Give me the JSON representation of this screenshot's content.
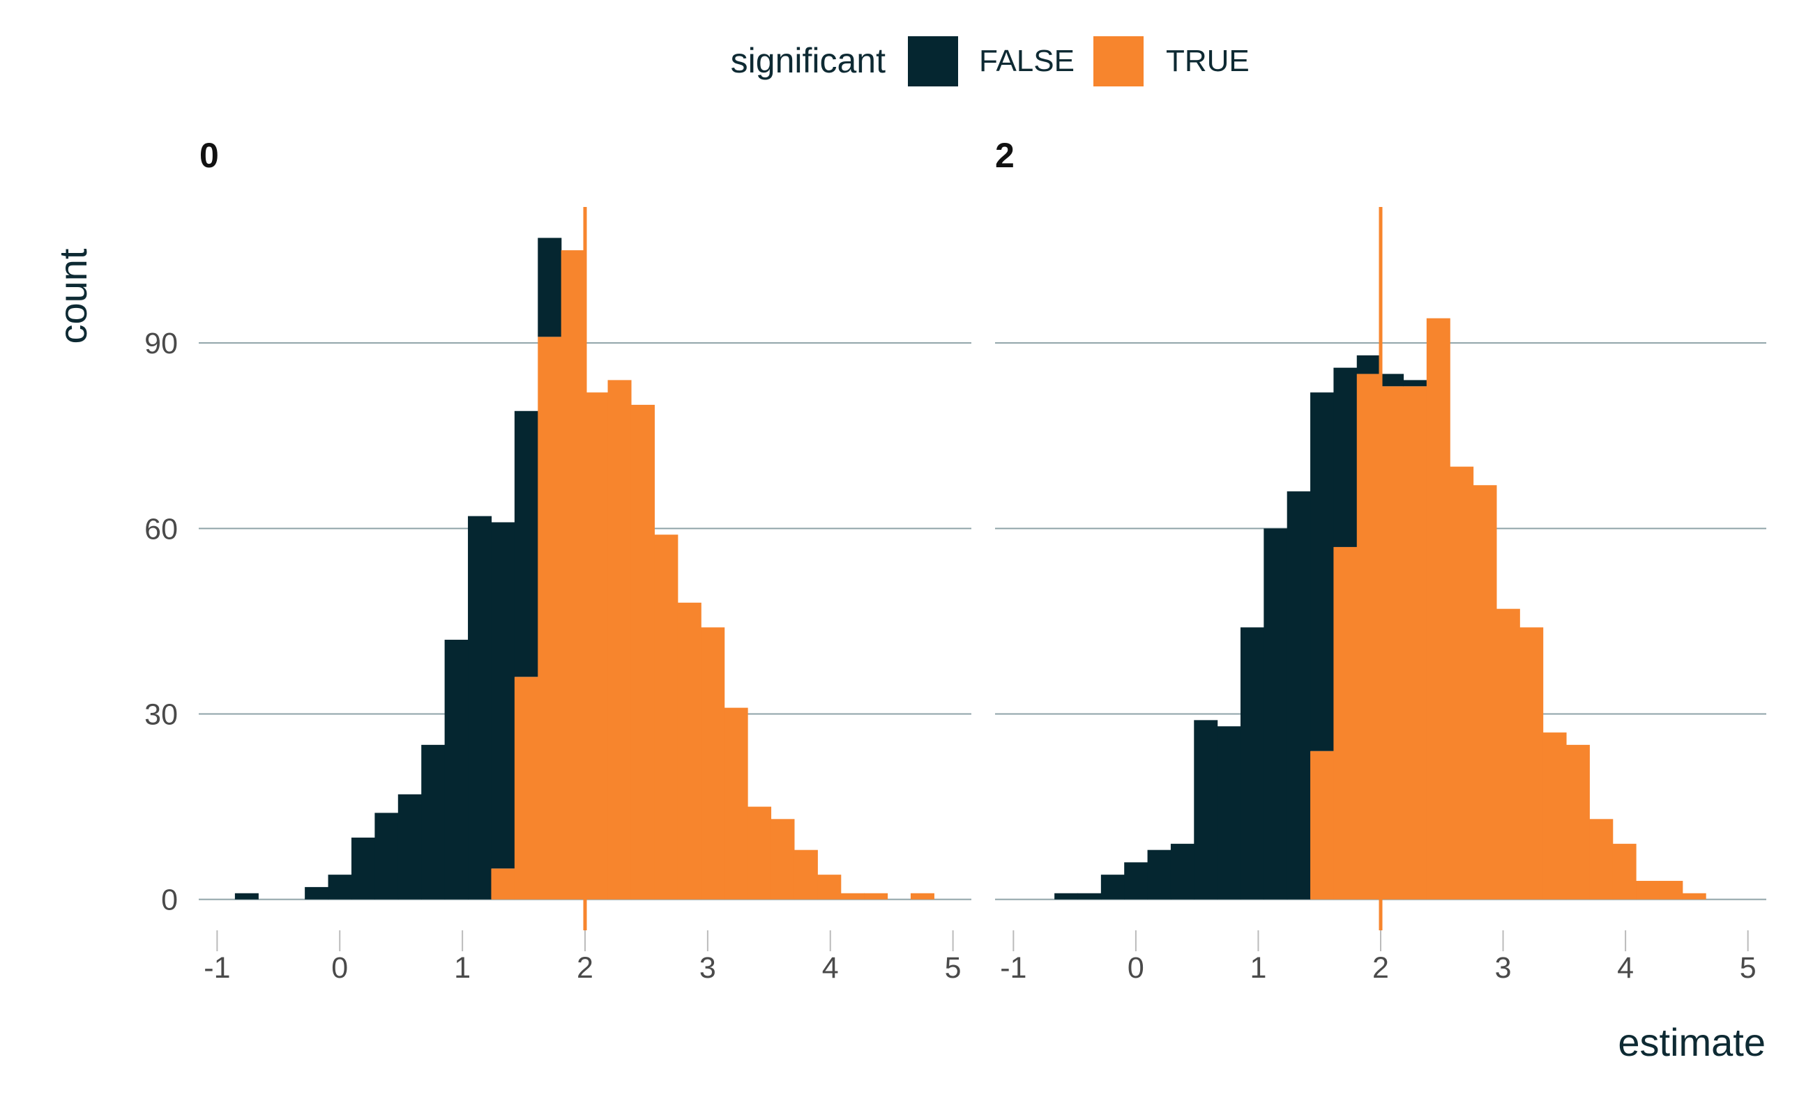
{
  "colors": {
    "false": "#052630",
    "true": "#f7852d",
    "grid": "#8fa3a8"
  },
  "chart_data": {
    "type": "bar",
    "subtype": "stacked-histogram",
    "xlabel": "estimate",
    "ylabel": "count",
    "xlim": [
      -1.15,
      5.15
    ],
    "ylim": [
      -5,
      112
    ],
    "xticks": [
      -1,
      0,
      1,
      2,
      3,
      4,
      5
    ],
    "yticks": [
      0,
      30,
      60,
      90
    ],
    "grid": "horizontal",
    "binwidth": 0.19,
    "reference_line": 2,
    "legend": {
      "title": "significant",
      "placement": "top",
      "entries": [
        {
          "label": "FALSE",
          "color": "#052630"
        },
        {
          "label": "TRUE",
          "color": "#f7852d"
        }
      ]
    },
    "facets": [
      {
        "title": "0",
        "bins": [
          {
            "x": -0.76,
            "false": 1,
            "true": 0
          },
          {
            "x": -0.57,
            "false": 0,
            "true": 0
          },
          {
            "x": -0.38,
            "false": 0,
            "true": 0
          },
          {
            "x": -0.19,
            "false": 2,
            "true": 0
          },
          {
            "x": 0.0,
            "false": 4,
            "true": 0
          },
          {
            "x": 0.19,
            "false": 10,
            "true": 0
          },
          {
            "x": 0.38,
            "false": 14,
            "true": 0
          },
          {
            "x": 0.57,
            "false": 17,
            "true": 0
          },
          {
            "x": 0.76,
            "false": 25,
            "true": 0
          },
          {
            "x": 0.95,
            "false": 42,
            "true": 0
          },
          {
            "x": 1.14,
            "false": 62,
            "true": 0
          },
          {
            "x": 1.33,
            "false": 56,
            "true": 5
          },
          {
            "x": 1.52,
            "false": 43,
            "true": 36
          },
          {
            "x": 1.71,
            "false": 16,
            "true": 91
          },
          {
            "x": 1.9,
            "false": 0,
            "true": 105
          },
          {
            "x": 2.09,
            "false": 0,
            "true": 82
          },
          {
            "x": 2.28,
            "false": 0,
            "true": 84
          },
          {
            "x": 2.47,
            "false": 0,
            "true": 80
          },
          {
            "x": 2.66,
            "false": 0,
            "true": 59
          },
          {
            "x": 2.85,
            "false": 0,
            "true": 48
          },
          {
            "x": 3.04,
            "false": 0,
            "true": 44
          },
          {
            "x": 3.23,
            "false": 0,
            "true": 31
          },
          {
            "x": 3.42,
            "false": 0,
            "true": 15
          },
          {
            "x": 3.61,
            "false": 0,
            "true": 13
          },
          {
            "x": 3.8,
            "false": 0,
            "true": 8
          },
          {
            "x": 3.99,
            "false": 0,
            "true": 4
          },
          {
            "x": 4.18,
            "false": 0,
            "true": 1
          },
          {
            "x": 4.37,
            "false": 0,
            "true": 1
          },
          {
            "x": 4.56,
            "false": 0,
            "true": 0
          },
          {
            "x": 4.75,
            "false": 0,
            "true": 1
          }
        ]
      },
      {
        "title": "2",
        "bins": [
          {
            "x": -0.57,
            "false": 1,
            "true": 0
          },
          {
            "x": -0.38,
            "false": 1,
            "true": 0
          },
          {
            "x": -0.19,
            "false": 4,
            "true": 0
          },
          {
            "x": 0.0,
            "false": 6,
            "true": 0
          },
          {
            "x": 0.19,
            "false": 8,
            "true": 0
          },
          {
            "x": 0.38,
            "false": 9,
            "true": 0
          },
          {
            "x": 0.57,
            "false": 29,
            "true": 0
          },
          {
            "x": 0.76,
            "false": 28,
            "true": 0
          },
          {
            "x": 0.95,
            "false": 44,
            "true": 0
          },
          {
            "x": 1.14,
            "false": 60,
            "true": 0
          },
          {
            "x": 1.33,
            "false": 66,
            "true": 0
          },
          {
            "x": 1.52,
            "false": 58,
            "true": 24
          },
          {
            "x": 1.71,
            "false": 29,
            "true": 57
          },
          {
            "x": 1.9,
            "false": 3,
            "true": 85
          },
          {
            "x": 2.09,
            "false": 2,
            "true": 83
          },
          {
            "x": 2.28,
            "false": 1,
            "true": 83
          },
          {
            "x": 2.47,
            "false": 0,
            "true": 94
          },
          {
            "x": 2.66,
            "false": 0,
            "true": 70
          },
          {
            "x": 2.85,
            "false": 0,
            "true": 67
          },
          {
            "x": 3.04,
            "false": 0,
            "true": 47
          },
          {
            "x": 3.23,
            "false": 0,
            "true": 44
          },
          {
            "x": 3.42,
            "false": 0,
            "true": 27
          },
          {
            "x": 3.61,
            "false": 0,
            "true": 25
          },
          {
            "x": 3.8,
            "false": 0,
            "true": 13
          },
          {
            "x": 3.99,
            "false": 0,
            "true": 9
          },
          {
            "x": 4.18,
            "false": 0,
            "true": 3
          },
          {
            "x": 4.37,
            "false": 0,
            "true": 3
          },
          {
            "x": 4.56,
            "false": 0,
            "true": 1
          }
        ]
      }
    ]
  }
}
